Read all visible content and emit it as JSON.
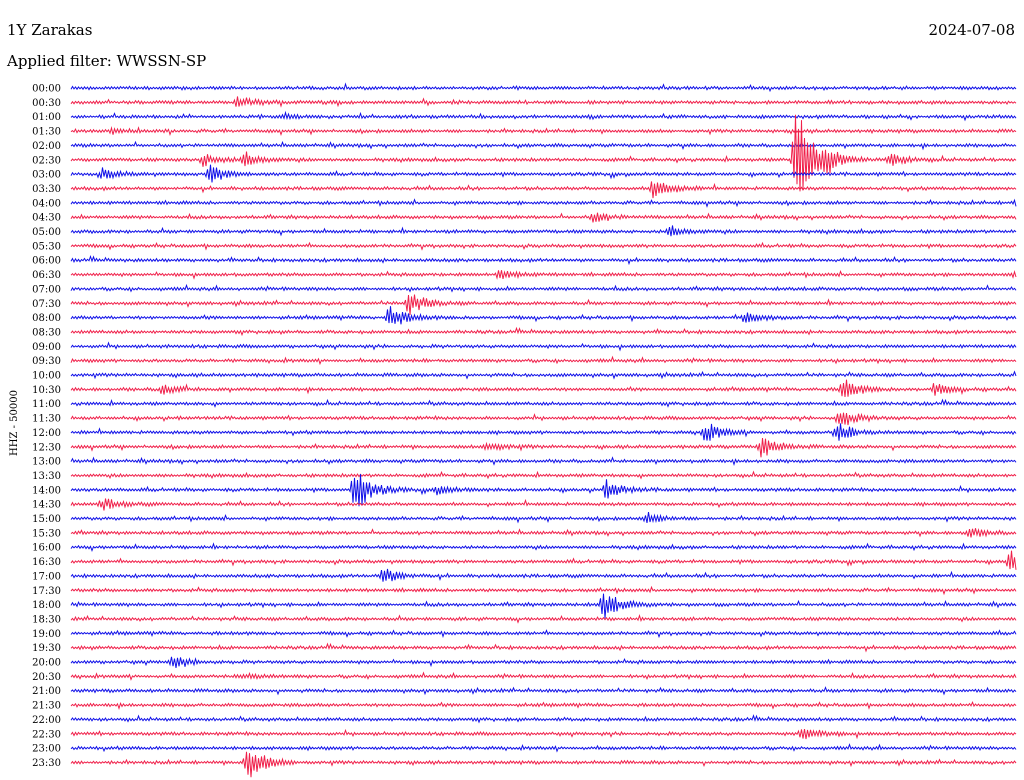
{
  "header": {
    "station": "1Y Zarakas",
    "date": "2024-07-08",
    "filter_label": "Applied filter: WWSSN-SP"
  },
  "colors": {
    "blue": "#1010e8",
    "red": "#f0204a"
  },
  "chart_data": {
    "type": "line",
    "title": "1Y Zarakas",
    "subtitle": "Applied filter: WWSSN-SP",
    "ylabel": "HHZ - 50000",
    "row_labels": [
      "00:00",
      "00:30",
      "01:00",
      "01:30",
      "02:00",
      "02:30",
      "03:00",
      "03:30",
      "04:00",
      "04:30",
      "05:00",
      "05:30",
      "06:00",
      "06:30",
      "07:00",
      "07:30",
      "08:00",
      "08:30",
      "09:00",
      "09:30",
      "10:00",
      "10:30",
      "11:00",
      "11:30",
      "12:00",
      "12:30",
      "13:00",
      "13:30",
      "14:00",
      "14:30",
      "15:00",
      "15:30",
      "16:00",
      "16:30",
      "17:00",
      "17:30",
      "18:00",
      "18:30",
      "19:00",
      "19:30",
      "20:00",
      "20:30",
      "21:00",
      "21:30",
      "22:00",
      "22:30",
      "23:00",
      "23:30"
    ],
    "row_colors": [
      "blue",
      "red"
    ],
    "events": [
      {
        "row": 1,
        "minute": 5.3,
        "amp": 6
      },
      {
        "row": 2,
        "minute": 6.7,
        "amp": 3
      },
      {
        "row": 3,
        "minute": 1.3,
        "amp": 2
      },
      {
        "row": 5,
        "minute": 4.2,
        "amp": 7
      },
      {
        "row": 5,
        "minute": 5.5,
        "amp": 8
      },
      {
        "row": 5,
        "minute": 23.0,
        "amp": 60
      },
      {
        "row": 5,
        "minute": 23.9,
        "amp": 10
      },
      {
        "row": 5,
        "minute": 26.0,
        "amp": 7
      },
      {
        "row": 6,
        "minute": 1.0,
        "amp": 5
      },
      {
        "row": 6,
        "minute": 4.4,
        "amp": 9
      },
      {
        "row": 7,
        "minute": 18.5,
        "amp": 12
      },
      {
        "row": 8,
        "minute": 30.0,
        "amp": 5
      },
      {
        "row": 9,
        "minute": 16.6,
        "amp": 5
      },
      {
        "row": 10,
        "minute": 19.0,
        "amp": 6
      },
      {
        "row": 13,
        "minute": 13.6,
        "amp": 5
      },
      {
        "row": 13,
        "minute": 30.0,
        "amp": 5
      },
      {
        "row": 15,
        "minute": 10.7,
        "amp": 12
      },
      {
        "row": 16,
        "minute": 10.1,
        "amp": 12
      },
      {
        "row": 16,
        "minute": 21.4,
        "amp": 6
      },
      {
        "row": 21,
        "minute": 2.9,
        "amp": 5
      },
      {
        "row": 21,
        "minute": 24.5,
        "amp": 11
      },
      {
        "row": 21,
        "minute": 27.4,
        "amp": 6
      },
      {
        "row": 23,
        "minute": 24.4,
        "amp": 10
      },
      {
        "row": 24,
        "minute": 20.1,
        "amp": 10
      },
      {
        "row": 24,
        "minute": 24.3,
        "amp": 10
      },
      {
        "row": 25,
        "minute": 21.9,
        "amp": 11
      },
      {
        "row": 25,
        "minute": 13.2,
        "amp": 5
      },
      {
        "row": 28,
        "minute": 9.0,
        "amp": 24
      },
      {
        "row": 28,
        "minute": 17.0,
        "amp": 9
      },
      {
        "row": 28,
        "minute": 11.6,
        "amp": 4
      },
      {
        "row": 29,
        "minute": 1.0,
        "amp": 6
      },
      {
        "row": 30,
        "minute": 18.3,
        "amp": 5
      },
      {
        "row": 31,
        "minute": 28.5,
        "amp": 5
      },
      {
        "row": 33,
        "minute": 29.8,
        "amp": 11
      },
      {
        "row": 34,
        "minute": 9.9,
        "amp": 8
      },
      {
        "row": 36,
        "minute": 16.9,
        "amp": 14
      },
      {
        "row": 40,
        "minute": 3.2,
        "amp": 7
      },
      {
        "row": 41,
        "minute": 5.5,
        "amp": 3
      },
      {
        "row": 45,
        "minute": 23.2,
        "amp": 8
      },
      {
        "row": 47,
        "minute": 5.6,
        "amp": 20
      }
    ]
  }
}
